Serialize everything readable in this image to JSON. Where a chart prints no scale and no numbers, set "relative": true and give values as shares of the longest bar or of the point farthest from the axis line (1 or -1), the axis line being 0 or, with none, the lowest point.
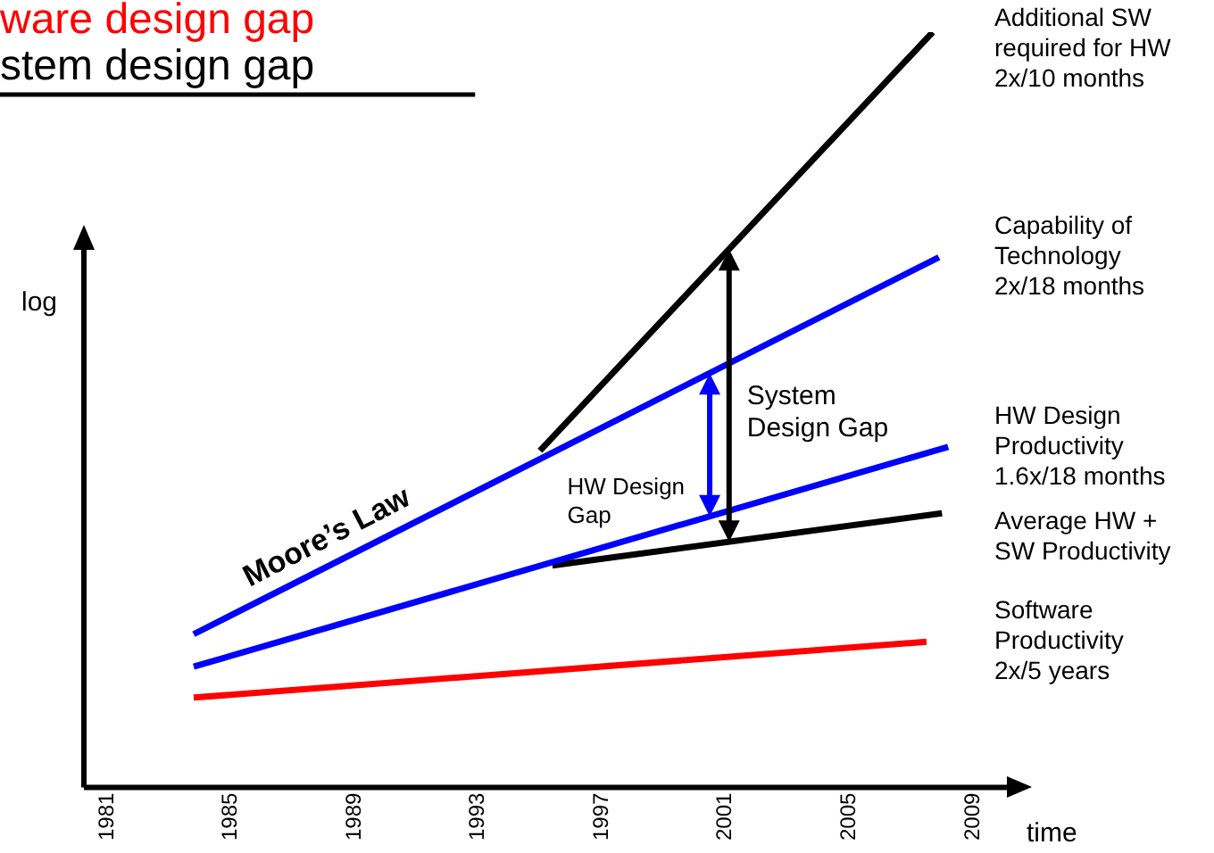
{
  "chart_data": {
    "type": "line",
    "title": "ware design gap",
    "subtitle": "stem design gap",
    "xlabel": "time",
    "ylabel": "log",
    "relative": true,
    "xlim": [
      1980.25,
      2010.1
    ],
    "xticks": [
      1981,
      1985,
      1989,
      1993,
      1997,
      2001,
      2005,
      2009
    ],
    "series": [
      {
        "name": "Additional SW required for HW 2x/10 months",
        "color": "#000000",
        "x": [
          1995.0,
          2007.7
        ],
        "values": [
          0.446,
          1
        ]
      },
      {
        "name": "Capability of Technology 2x/18 months",
        "color": "#0000ff",
        "x": [
          1983.8,
          2007.9
        ],
        "values": [
          0.203,
          0.702
        ]
      },
      {
        "name": "HW Design Productivity 1.6x/18 months",
        "color": "#0000ff",
        "x": [
          1983.8,
          2008.2
        ],
        "values": [
          0.16,
          0.451
        ]
      },
      {
        "name": "Average HW + SW Productivity",
        "color": "#000000",
        "x": [
          1995.4,
          2008.0
        ],
        "values": [
          0.294,
          0.363
        ]
      },
      {
        "name": "Software Productivity 2x/5 years",
        "color": "#ff0000",
        "x": [
          1983.8,
          2007.5
        ],
        "values": [
          0.119,
          0.193
        ]
      }
    ],
    "annotations": [
      {
        "text": "Moore’s Law",
        "x": 1988.5,
        "y": 0.3
      },
      "HW Design Gap",
      "System Design Gap"
    ]
  }
}
